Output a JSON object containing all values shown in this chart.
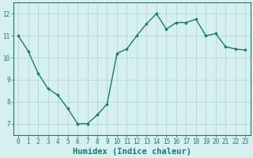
{
  "x": [
    0,
    1,
    2,
    3,
    4,
    5,
    6,
    7,
    8,
    9,
    10,
    11,
    12,
    13,
    14,
    15,
    16,
    17,
    18,
    19,
    20,
    21,
    22,
    23
  ],
  "y": [
    11.0,
    10.3,
    9.3,
    8.6,
    8.3,
    7.7,
    7.0,
    7.0,
    7.4,
    7.9,
    10.2,
    10.4,
    11.0,
    11.55,
    12.0,
    11.3,
    11.6,
    11.6,
    11.75,
    11.0,
    11.1,
    10.5,
    10.4,
    10.35
  ],
  "line_color": "#1a7a6e",
  "marker": "D",
  "marker_size": 1.8,
  "bg_color": "#d6f0ef",
  "grid_color": "#a8d4d0",
  "axis_bg": "#d6f0ef",
  "xlabel": "Humidex (Indice chaleur)",
  "xlim": [
    -0.5,
    23.5
  ],
  "ylim": [
    6.5,
    12.5
  ],
  "yticks": [
    7,
    8,
    9,
    10,
    11,
    12
  ],
  "xtick_labels": [
    "0",
    "1",
    "2",
    "3",
    "4",
    "5",
    "6",
    "7",
    "8",
    "9",
    "10",
    "11",
    "12",
    "13",
    "14",
    "15",
    "16",
    "17",
    "18",
    "19",
    "20",
    "21",
    "22",
    "23"
  ],
  "tick_color": "#1a7a6e",
  "label_color": "#1a7a6e",
  "xlabel_fontsize": 7.5,
  "tick_fontsize": 5.5,
  "ylabel_fontsize": 5.5,
  "linewidth": 1.0
}
